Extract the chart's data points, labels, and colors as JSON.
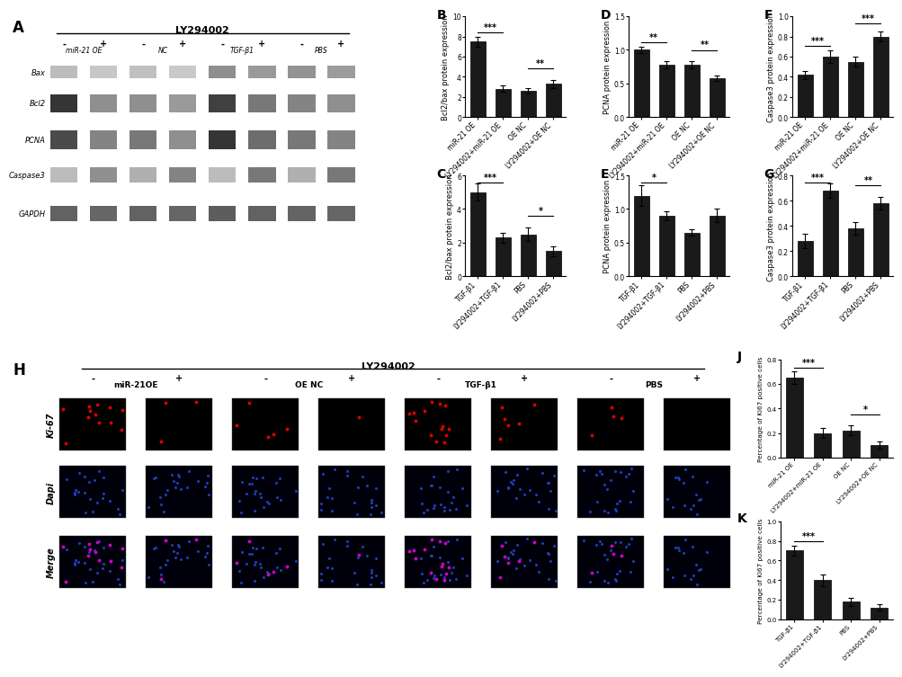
{
  "panel_A": {
    "label": "A",
    "LY294002_label": "LY294002",
    "minus_plus": [
      "-",
      "+",
      "-",
      "+",
      "-",
      "+",
      "-",
      "+"
    ],
    "groups": [
      "miR-21 OE",
      "NC",
      "TGF-β1",
      "PBS"
    ],
    "bands": [
      "Bax",
      "Bcl2",
      "PCNA",
      "Caspase3",
      "GAPDH"
    ]
  },
  "panel_B": {
    "label": "B",
    "ylabel": "Bcl2/bax protein expression",
    "categories": [
      "miR-21 OE",
      "LY294002+miR-21 OE",
      "OE NC",
      "LY294002+OE NC"
    ],
    "values": [
      7.5,
      2.8,
      2.6,
      3.3
    ],
    "errors": [
      0.5,
      0.3,
      0.3,
      0.4
    ],
    "ylim": [
      0,
      10
    ],
    "yticks": [
      0,
      2,
      4,
      6,
      8,
      10
    ],
    "sig_pairs": [
      [
        0,
        1,
        "***"
      ],
      [
        2,
        3,
        "**"
      ]
    ],
    "bar_color": "#1a1a1a"
  },
  "panel_C": {
    "label": "C",
    "ylabel": "Bcl2/bax protein expression",
    "categories": [
      "TGF-β1",
      "LY294002+TGF-β1",
      "PBS",
      "LY294002+PBS"
    ],
    "values": [
      5.0,
      2.3,
      2.5,
      1.5
    ],
    "errors": [
      0.5,
      0.3,
      0.4,
      0.3
    ],
    "ylim": [
      0,
      6
    ],
    "yticks": [
      0,
      2,
      4,
      6
    ],
    "sig_pairs": [
      [
        0,
        1,
        "***"
      ],
      [
        2,
        3,
        "*"
      ]
    ],
    "bar_color": "#1a1a1a"
  },
  "panel_D": {
    "label": "D",
    "ylabel": "PCNA protein expression",
    "categories": [
      "miR-21 OE",
      "LY294002+miR-21 OE",
      "OE NC",
      "LY294002+OE NC"
    ],
    "values": [
      1.0,
      0.78,
      0.78,
      0.58
    ],
    "errors": [
      0.05,
      0.05,
      0.05,
      0.04
    ],
    "ylim": [
      0,
      1.5
    ],
    "yticks": [
      0.0,
      0.5,
      1.0,
      1.5
    ],
    "sig_pairs": [
      [
        0,
        1,
        "**"
      ],
      [
        2,
        3,
        "**"
      ]
    ],
    "bar_color": "#1a1a1a"
  },
  "panel_E": {
    "label": "E",
    "ylabel": "PCNA protein expression",
    "categories": [
      "TGF-β1",
      "LY294002+TGF-β1",
      "PBS",
      "LY294002+PBS"
    ],
    "values": [
      1.2,
      0.9,
      0.65,
      0.9
    ],
    "errors": [
      0.15,
      0.07,
      0.05,
      0.1
    ],
    "ylim": [
      0,
      1.5
    ],
    "yticks": [
      0.0,
      0.5,
      1.0,
      1.5
    ],
    "sig_pairs": [
      [
        0,
        1,
        "*"
      ]
    ],
    "bar_color": "#1a1a1a"
  },
  "panel_F": {
    "label": "F",
    "ylabel": "Caspase3 protein expression",
    "categories": [
      "miR-21 OE",
      "LY294002+miR-21 OE",
      "OE NC",
      "LY294002+OE NC"
    ],
    "values": [
      0.42,
      0.6,
      0.55,
      0.8
    ],
    "errors": [
      0.04,
      0.06,
      0.05,
      0.05
    ],
    "ylim": [
      0,
      1.0
    ],
    "yticks": [
      0.0,
      0.2,
      0.4,
      0.6,
      0.8,
      1.0
    ],
    "sig_pairs": [
      [
        0,
        1,
        "***"
      ],
      [
        2,
        3,
        "***"
      ]
    ],
    "bar_color": "#1a1a1a"
  },
  "panel_G": {
    "label": "G",
    "ylabel": "Caspase3 protein expression",
    "categories": [
      "TGF-β1",
      "LY294002+TGF-β1",
      "PBS",
      "LY294002+PBS"
    ],
    "values": [
      0.28,
      0.68,
      0.38,
      0.58
    ],
    "errors": [
      0.06,
      0.06,
      0.05,
      0.05
    ],
    "ylim": [
      0,
      0.8
    ],
    "yticks": [
      0.0,
      0.2,
      0.4,
      0.6,
      0.8
    ],
    "sig_pairs": [
      [
        0,
        1,
        "***"
      ],
      [
        2,
        3,
        "**"
      ]
    ],
    "bar_color": "#1a1a1a"
  },
  "panel_H": {
    "label": "H",
    "LY294002_label": "LY294002",
    "minus_plus": [
      "-",
      "+",
      "-",
      "+",
      "-",
      "+",
      "-",
      "+"
    ],
    "groups": [
      "miR-21OE",
      "OE NC",
      "TGF-β1",
      "PBS"
    ],
    "rows": [
      "Ki-67",
      "Dapi",
      "Merge"
    ]
  },
  "panel_J": {
    "label": "J",
    "ylabel": "Percentage of Ki67 positive cells",
    "categories": [
      "miR-21 OE",
      "LY294002+miR-21 OE",
      "OE NC",
      "LY294002+OE NC"
    ],
    "values": [
      0.65,
      0.2,
      0.22,
      0.1
    ],
    "errors": [
      0.05,
      0.04,
      0.04,
      0.03
    ],
    "ylim": [
      0,
      0.8
    ],
    "yticks": [
      0.0,
      0.2,
      0.4,
      0.6,
      0.8
    ],
    "sig_pairs": [
      [
        0,
        1,
        "***"
      ],
      [
        2,
        3,
        "*"
      ]
    ],
    "bar_color": "#1a1a1a"
  },
  "panel_K": {
    "label": "K",
    "ylabel": "Percentage of Ki67 positive cells",
    "categories": [
      "TGF-β1",
      "LY294002+TGF-β1",
      "PBS",
      "LY294002+PBS"
    ],
    "values": [
      0.7,
      0.4,
      0.18,
      0.12
    ],
    "errors": [
      0.05,
      0.06,
      0.04,
      0.03
    ],
    "ylim": [
      0,
      1.0
    ],
    "yticks": [
      0.0,
      0.2,
      0.4,
      0.6,
      0.8,
      1.0
    ],
    "sig_pairs": [
      [
        0,
        1,
        "***"
      ]
    ],
    "bar_color": "#1a1a1a"
  },
  "figure_bg": "#ffffff",
  "bar_edge_color": "#000000",
  "tick_fontsize": 5.5,
  "axis_label_fontsize": 6,
  "band_intensity": {
    "Bax": [
      0.3,
      0.25,
      0.28,
      0.24,
      0.5,
      0.45,
      0.48,
      0.44
    ],
    "Bcl2": [
      0.9,
      0.5,
      0.5,
      0.45,
      0.85,
      0.6,
      0.55,
      0.5
    ],
    "PCNA": [
      0.8,
      0.55,
      0.6,
      0.5,
      0.9,
      0.65,
      0.6,
      0.55
    ],
    "Caspase3": [
      0.3,
      0.5,
      0.35,
      0.55,
      0.3,
      0.6,
      0.35,
      0.6
    ],
    "GAPDH": [
      0.7,
      0.68,
      0.7,
      0.68,
      0.72,
      0.7,
      0.69,
      0.68
    ]
  },
  "cell_counts": [
    12,
    3,
    5,
    1,
    14,
    6,
    4,
    0
  ]
}
